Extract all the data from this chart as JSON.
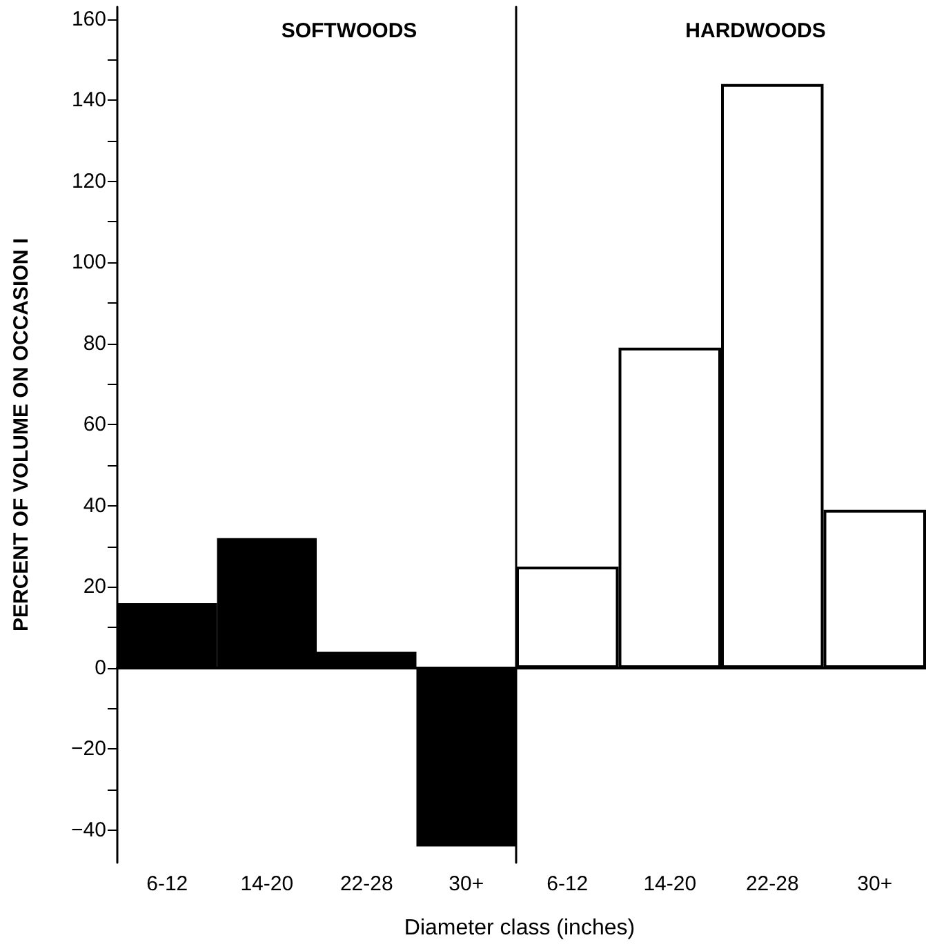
{
  "chart_data": [
    {
      "type": "bar",
      "title": "SOFTWOODS",
      "ylabel": "PERCENT OF VOLUME ON OCCASION I",
      "categories": [
        "6-12",
        "14-20",
        "22-28",
        "30+"
      ],
      "series": [
        {
          "color": "#000000",
          "values": [
            16,
            32,
            4,
            -44
          ]
        }
      ],
      "ylim": [
        -48,
        163
      ],
      "yticks": [
        -40,
        {
          "value": -30,
          "label": null
        },
        -20,
        {
          "value": -10,
          "label": null
        },
        0,
        {
          "value": 10,
          "label": null
        },
        20,
        {
          "value": 30,
          "label": null
        },
        40,
        {
          "value": 50,
          "label": null
        },
        60,
        {
          "value": 70,
          "label": null
        },
        80,
        {
          "value": 90,
          "label": null
        },
        100,
        {
          "value": 110,
          "label": null
        },
        120,
        {
          "value": 130,
          "label": null
        },
        140,
        {
          "value": 150,
          "label": null
        },
        160
      ]
    },
    {
      "type": "bar",
      "title": "HARDWOODS",
      "xlabel": "Diameter class (inches)",
      "categories": [
        "6-12",
        "14-20",
        "22-28",
        "30+"
      ],
      "series": [
        {
          "color": "#ffffff",
          "values": [
            25,
            79,
            144,
            39
          ]
        }
      ],
      "ylim": [
        -48,
        163
      ],
      "tick_labels": "x"
    }
  ]
}
